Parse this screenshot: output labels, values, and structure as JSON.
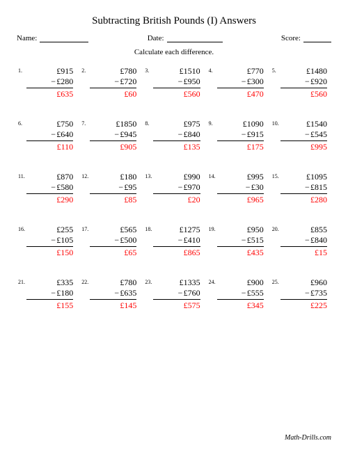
{
  "title": "Subtracting British Pounds (I) Answers",
  "header": {
    "name_label": "Name:",
    "date_label": "Date:",
    "score_label": "Score:"
  },
  "instruction": "Calculate each difference.",
  "currency": "£",
  "footer": "Math-Drills.com",
  "problems": [
    {
      "n": "1.",
      "a": "915",
      "b": "280",
      "r": "635"
    },
    {
      "n": "2.",
      "a": "780",
      "b": "720",
      "r": "60"
    },
    {
      "n": "3.",
      "a": "1510",
      "b": "950",
      "r": "560"
    },
    {
      "n": "4.",
      "a": "770",
      "b": "300",
      "r": "470"
    },
    {
      "n": "5.",
      "a": "1480",
      "b": "920",
      "r": "560"
    },
    {
      "n": "6.",
      "a": "750",
      "b": "640",
      "r": "110"
    },
    {
      "n": "7.",
      "a": "1850",
      "b": "945",
      "r": "905"
    },
    {
      "n": "8.",
      "a": "975",
      "b": "840",
      "r": "135"
    },
    {
      "n": "9.",
      "a": "1090",
      "b": "915",
      "r": "175"
    },
    {
      "n": "10.",
      "a": "1540",
      "b": "545",
      "r": "995"
    },
    {
      "n": "11.",
      "a": "870",
      "b": "580",
      "r": "290"
    },
    {
      "n": "12.",
      "a": "180",
      "b": "95",
      "r": "85"
    },
    {
      "n": "13.",
      "a": "990",
      "b": "970",
      "r": "20"
    },
    {
      "n": "14.",
      "a": "995",
      "b": "30",
      "r": "965"
    },
    {
      "n": "15.",
      "a": "1095",
      "b": "815",
      "r": "280"
    },
    {
      "n": "16.",
      "a": "255",
      "b": "105",
      "r": "150"
    },
    {
      "n": "17.",
      "a": "565",
      "b": "500",
      "r": "65"
    },
    {
      "n": "18.",
      "a": "1275",
      "b": "410",
      "r": "865"
    },
    {
      "n": "19.",
      "a": "950",
      "b": "515",
      "r": "435"
    },
    {
      "n": "20.",
      "a": "855",
      "b": "840",
      "r": "15"
    },
    {
      "n": "21.",
      "a": "335",
      "b": "180",
      "r": "155"
    },
    {
      "n": "22.",
      "a": "780",
      "b": "635",
      "r": "145"
    },
    {
      "n": "23.",
      "a": "1335",
      "b": "760",
      "r": "575"
    },
    {
      "n": "24.",
      "a": "900",
      "b": "555",
      "r": "345"
    },
    {
      "n": "25.",
      "a": "960",
      "b": "735",
      "r": "225"
    }
  ]
}
